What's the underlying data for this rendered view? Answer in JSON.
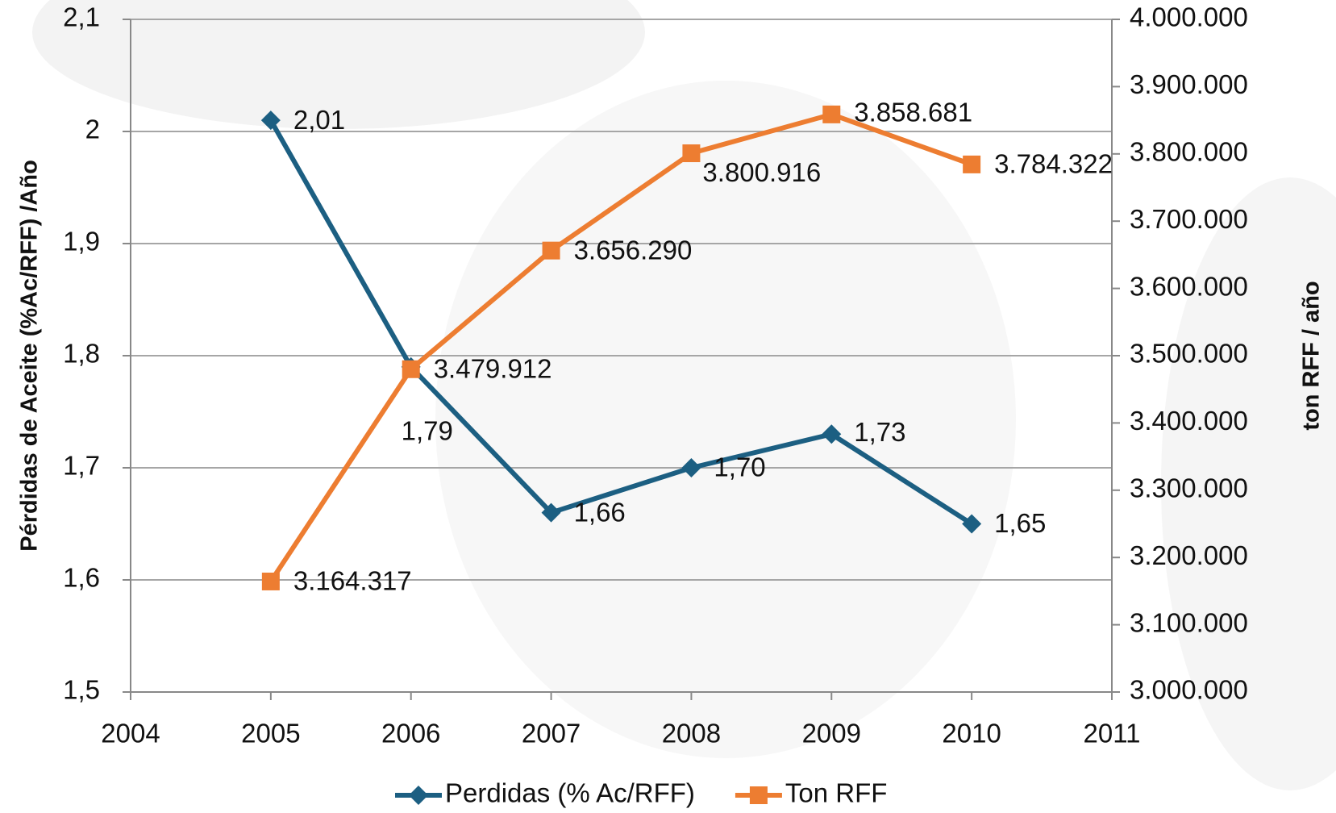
{
  "chart_data": {
    "type": "line",
    "y_label": "Pérdidas de Aceite (%Ac/RFF) /Año",
    "y2_label": "ton RFF / año",
    "x": [
      2005,
      2006,
      2007,
      2008,
      2009,
      2010
    ],
    "xlim": [
      2004,
      2011
    ],
    "xticks": [
      2004,
      2005,
      2006,
      2007,
      2008,
      2009,
      2010,
      2011
    ],
    "ylim": [
      1.5,
      2.1
    ],
    "yticks": [
      {
        "value": 1.5,
        "label": "1,5"
      },
      {
        "value": 1.6,
        "label": "1,6"
      },
      {
        "value": 1.7,
        "label": "1,7"
      },
      {
        "value": 1.8,
        "label": "1,8"
      },
      {
        "value": 1.9,
        "label": "1,9"
      },
      2,
      {
        "value": 2.1,
        "label": "2,1"
      }
    ],
    "y2lim": [
      3000000,
      4000000
    ],
    "y2ticks": [
      {
        "value": 3000000,
        "label": "3.000.000"
      },
      {
        "value": 3100000,
        "label": "3.100.000"
      },
      {
        "value": 3200000,
        "label": "3.200.000"
      },
      {
        "value": 3300000,
        "label": "3.300.000"
      },
      {
        "value": 3400000,
        "label": "3.400.000"
      },
      {
        "value": 3500000,
        "label": "3.500.000"
      },
      {
        "value": 3600000,
        "label": "3.600.000"
      },
      {
        "value": 3700000,
        "label": "3.700.000"
      },
      {
        "value": 3800000,
        "label": "3.800.000"
      },
      {
        "value": 3900000,
        "label": "3.900.000"
      },
      {
        "value": 4000000,
        "label": "4.000.000"
      }
    ],
    "grid": true,
    "legend": "bottom",
    "series": [
      {
        "name": "Perdidas (% Ac/RFF)",
        "color": "#1c5f82",
        "marker": "diamond",
        "values": [
          2.01,
          1.79,
          1.66,
          1.7,
          1.73,
          1.65
        ],
        "value_labels": [
          "2,01",
          "1,79",
          "1,66",
          "1,70",
          "1,73",
          "1,65"
        ]
      },
      {
        "name": "Ton RFF",
        "color": "#ed7d31",
        "marker": "square",
        "axis": "y2",
        "values": [
          3164317,
          3479912,
          3656290,
          3800916,
          3858681,
          3784322
        ],
        "value_labels": [
          "3.164.317",
          "3.479.912",
          "3.656.290",
          "3.800.916",
          "3.858.681",
          "3.784.322"
        ]
      }
    ]
  }
}
